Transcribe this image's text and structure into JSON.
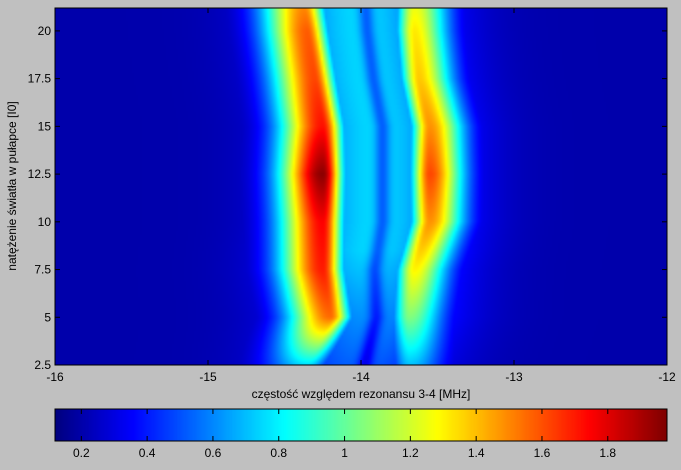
{
  "chart_data": {
    "type": "heatmap",
    "xlabel": "częstość względem rezonansu 3-4 [MHz]",
    "ylabel": "natężenie światła w pułapce [I0]",
    "xlim": [
      -16,
      -12
    ],
    "ylim": [
      2.5,
      21.2
    ],
    "x_ticks": [
      -16,
      -15,
      -14,
      -13,
      -12
    ],
    "x_tick_labels": [
      "-16",
      "-15",
      "-14",
      "-13",
      "-12"
    ],
    "y_ticks": [
      2.5,
      5,
      7.5,
      10,
      12.5,
      15,
      17.5,
      20
    ],
    "y_tick_labels": [
      "2.5",
      "5",
      "7.5",
      "10",
      "12.5",
      "15",
      "17.5",
      "20"
    ],
    "colormap": "jet",
    "colorbar": {
      "range": [
        0.12,
        1.98
      ],
      "ticks": [
        0.2,
        0.4,
        0.6,
        0.8,
        1,
        1.2,
        1.4,
        1.6,
        1.8
      ],
      "tick_labels": [
        "0.2",
        "0.4",
        "0.6",
        "0.8",
        "1",
        "1.2",
        "1.4",
        "1.6",
        "1.8"
      ],
      "placement": "bottom"
    },
    "background_value": 0.2,
    "ridges": [
      {
        "side": "left",
        "edge": "outer",
        "profile": [
          {
            "y": 2.5,
            "x": -14.35,
            "v": 0.75
          },
          {
            "y": 5,
            "x": -14.2,
            "v": 1.55
          },
          {
            "y": 7.5,
            "x": -14.25,
            "v": 1.7
          },
          {
            "y": 10,
            "x": -14.25,
            "v": 1.75
          },
          {
            "y": 12.5,
            "x": -14.25,
            "v": 1.96
          },
          {
            "y": 15,
            "x": -14.25,
            "v": 1.72
          },
          {
            "y": 17.5,
            "x": -14.3,
            "v": 1.62
          },
          {
            "y": 20,
            "x": -14.35,
            "v": 1.58
          },
          {
            "y": 21.2,
            "x": -14.37,
            "v": 1.5
          }
        ]
      },
      {
        "side": "right",
        "edge": "outer",
        "profile": [
          {
            "y": 2.5,
            "x": -13.68,
            "v": 0.7
          },
          {
            "y": 5,
            "x": -13.68,
            "v": 1.05
          },
          {
            "y": 7.5,
            "x": -13.65,
            "v": 1.3
          },
          {
            "y": 10,
            "x": -13.55,
            "v": 1.48
          },
          {
            "y": 12.5,
            "x": -13.55,
            "v": 1.62
          },
          {
            "y": 15,
            "x": -13.55,
            "v": 1.48
          },
          {
            "y": 17.5,
            "x": -13.62,
            "v": 1.38
          },
          {
            "y": 20,
            "x": -13.65,
            "v": 1.32
          },
          {
            "y": 21.2,
            "x": -13.65,
            "v": 1.25
          }
        ]
      }
    ]
  }
}
